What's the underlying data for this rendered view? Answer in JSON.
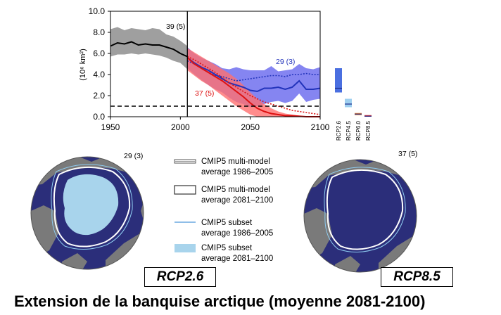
{
  "caption": "Extension de la banquise arctique (moyenne 2081-2100)",
  "scenario_boxes": {
    "left": "RCP2.6",
    "right": "RCP8.5"
  },
  "chart_data": {
    "type": "line",
    "xlim": [
      1950,
      2100
    ],
    "ylim": [
      0,
      10
    ],
    "xticks": [
      "1950",
      "2000",
      "2050",
      "2100"
    ],
    "yticks": [
      "0.0",
      "2.0",
      "4.0",
      "6.0",
      "8.0",
      "10.0"
    ],
    "ylabel": "(10⁶ km²)",
    "vertical_line_x": 2005,
    "threshold_dashed_y": 1.0,
    "annotations": {
      "historical": "39 (5)",
      "rcp26": "29 (3)",
      "rcp85": "37 (5)"
    },
    "series": [
      {
        "key": "historical",
        "color": "#000000",
        "band_color": "#9a9a9a",
        "x": [
          1950,
          1955,
          1960,
          1965,
          1970,
          1975,
          1980,
          1985,
          1990,
          1995,
          2000,
          2005
        ],
        "mean": [
          6.7,
          7.0,
          6.9,
          7.1,
          6.8,
          6.9,
          6.8,
          6.8,
          6.6,
          6.4,
          6.0,
          5.7
        ],
        "lower": [
          5.7,
          5.9,
          5.9,
          6.0,
          5.9,
          6.0,
          5.9,
          5.8,
          5.6,
          5.3,
          5.1,
          4.5
        ],
        "upper": [
          8.3,
          8.5,
          8.2,
          8.4,
          8.3,
          8.2,
          8.4,
          8.3,
          7.8,
          7.6,
          7.2,
          6.7
        ]
      },
      {
        "key": "RCP2.6",
        "color": "#2233bb",
        "band_color": "#6666ee",
        "x": [
          2005,
          2010,
          2015,
          2020,
          2025,
          2030,
          2035,
          2040,
          2045,
          2050,
          2055,
          2060,
          2065,
          2070,
          2075,
          2080,
          2085,
          2090,
          2095,
          2100
        ],
        "mean": [
          5.6,
          5.1,
          4.7,
          4.4,
          4.0,
          3.6,
          3.2,
          3.0,
          2.8,
          2.5,
          2.4,
          2.7,
          2.7,
          2.8,
          2.6,
          2.8,
          3.4,
          2.6,
          2.6,
          2.7
        ],
        "lower": [
          4.6,
          4.0,
          3.5,
          3.0,
          2.6,
          2.3,
          1.8,
          1.4,
          1.2,
          0.9,
          1.0,
          1.2,
          1.4,
          1.5,
          1.3,
          1.5,
          2.2,
          1.4,
          1.6,
          1.7
        ],
        "upper": [
          6.6,
          6.0,
          5.6,
          5.3,
          5.0,
          4.6,
          4.5,
          4.7,
          4.5,
          4.4,
          4.4,
          4.4,
          4.8,
          4.3,
          4.4,
          4.5,
          5.0,
          4.6,
          4.5,
          4.7
        ],
        "subset_mean": [
          5.3,
          5.0,
          4.6,
          4.2,
          3.9,
          3.8,
          3.6,
          3.4,
          3.5,
          3.6,
          3.7,
          3.8,
          3.9,
          3.9,
          3.8,
          4.0,
          4.0,
          4.1,
          4.0,
          4.0
        ]
      },
      {
        "key": "RCP8.5",
        "color": "#dd1111",
        "band_color": "#ff6f6f",
        "x": [
          2005,
          2010,
          2015,
          2020,
          2025,
          2030,
          2035,
          2040,
          2045,
          2050,
          2055,
          2060,
          2065,
          2070,
          2075,
          2080,
          2085,
          2090,
          2095,
          2100
        ],
        "mean": [
          5.6,
          5.0,
          4.6,
          4.2,
          3.8,
          3.4,
          2.9,
          2.4,
          1.9,
          1.3,
          0.8,
          0.5,
          0.3,
          0.2,
          0.1,
          0.1,
          0.05,
          0.0,
          0.0,
          0.0
        ],
        "lower": [
          4.4,
          3.9,
          3.4,
          3.0,
          2.5,
          2.0,
          1.5,
          1.0,
          0.6,
          0.2,
          0.0,
          0.0,
          0.0,
          0.0,
          0.0,
          0.0,
          0.0,
          0.0,
          0.0,
          0.0
        ],
        "upper": [
          6.5,
          6.1,
          5.7,
          5.3,
          4.9,
          4.5,
          4.1,
          3.6,
          3.0,
          2.3,
          1.7,
          1.2,
          0.8,
          0.5,
          0.3,
          0.2,
          0.1,
          0.05,
          0.0,
          0.0
        ],
        "subset_mean": [
          5.7,
          5.4,
          5.0,
          4.6,
          4.2,
          3.7,
          3.2,
          2.8,
          2.4,
          2.0,
          1.7,
          1.4,
          1.2,
          1.0,
          0.8,
          0.6,
          0.5,
          0.4,
          0.3,
          0.2
        ]
      }
    ],
    "side_bars": [
      {
        "label": "RCP2.6",
        "color": "#4a6fe0",
        "lower": 2.3,
        "upper": 4.6,
        "mean": 2.7
      },
      {
        "label": "RCP4.5",
        "color": "#9fd0f0",
        "lower": 0.9,
        "upper": 1.7,
        "mean": 1.2
      },
      {
        "label": "RCP6.0",
        "color": "#f08a3a",
        "lower": 0.15,
        "upper": 0.35,
        "mean": 0.25
      },
      {
        "label": "RCP8.5",
        "color": "#e03030",
        "lower": 0.0,
        "upper": 0.15,
        "mean": 0.05
      }
    ]
  },
  "maps": {
    "left_count": "29 (3)",
    "right_count": "37 (5)",
    "ocean_color": "#2b2e7a",
    "land_color": "#7a7a7a",
    "ice_color": "#a8d4ec"
  },
  "legend": {
    "items": [
      {
        "line1": "CMIP5 multi-model",
        "line2": "average 1986–2005"
      },
      {
        "line1": "CMIP5 multi-model",
        "line2": "average 2081–2100"
      },
      {
        "line1": "CMIP5 subset",
        "line2": "average 1986–2005"
      },
      {
        "line1": "CMIP5 subset",
        "line2": "average 2081–2100"
      }
    ]
  }
}
